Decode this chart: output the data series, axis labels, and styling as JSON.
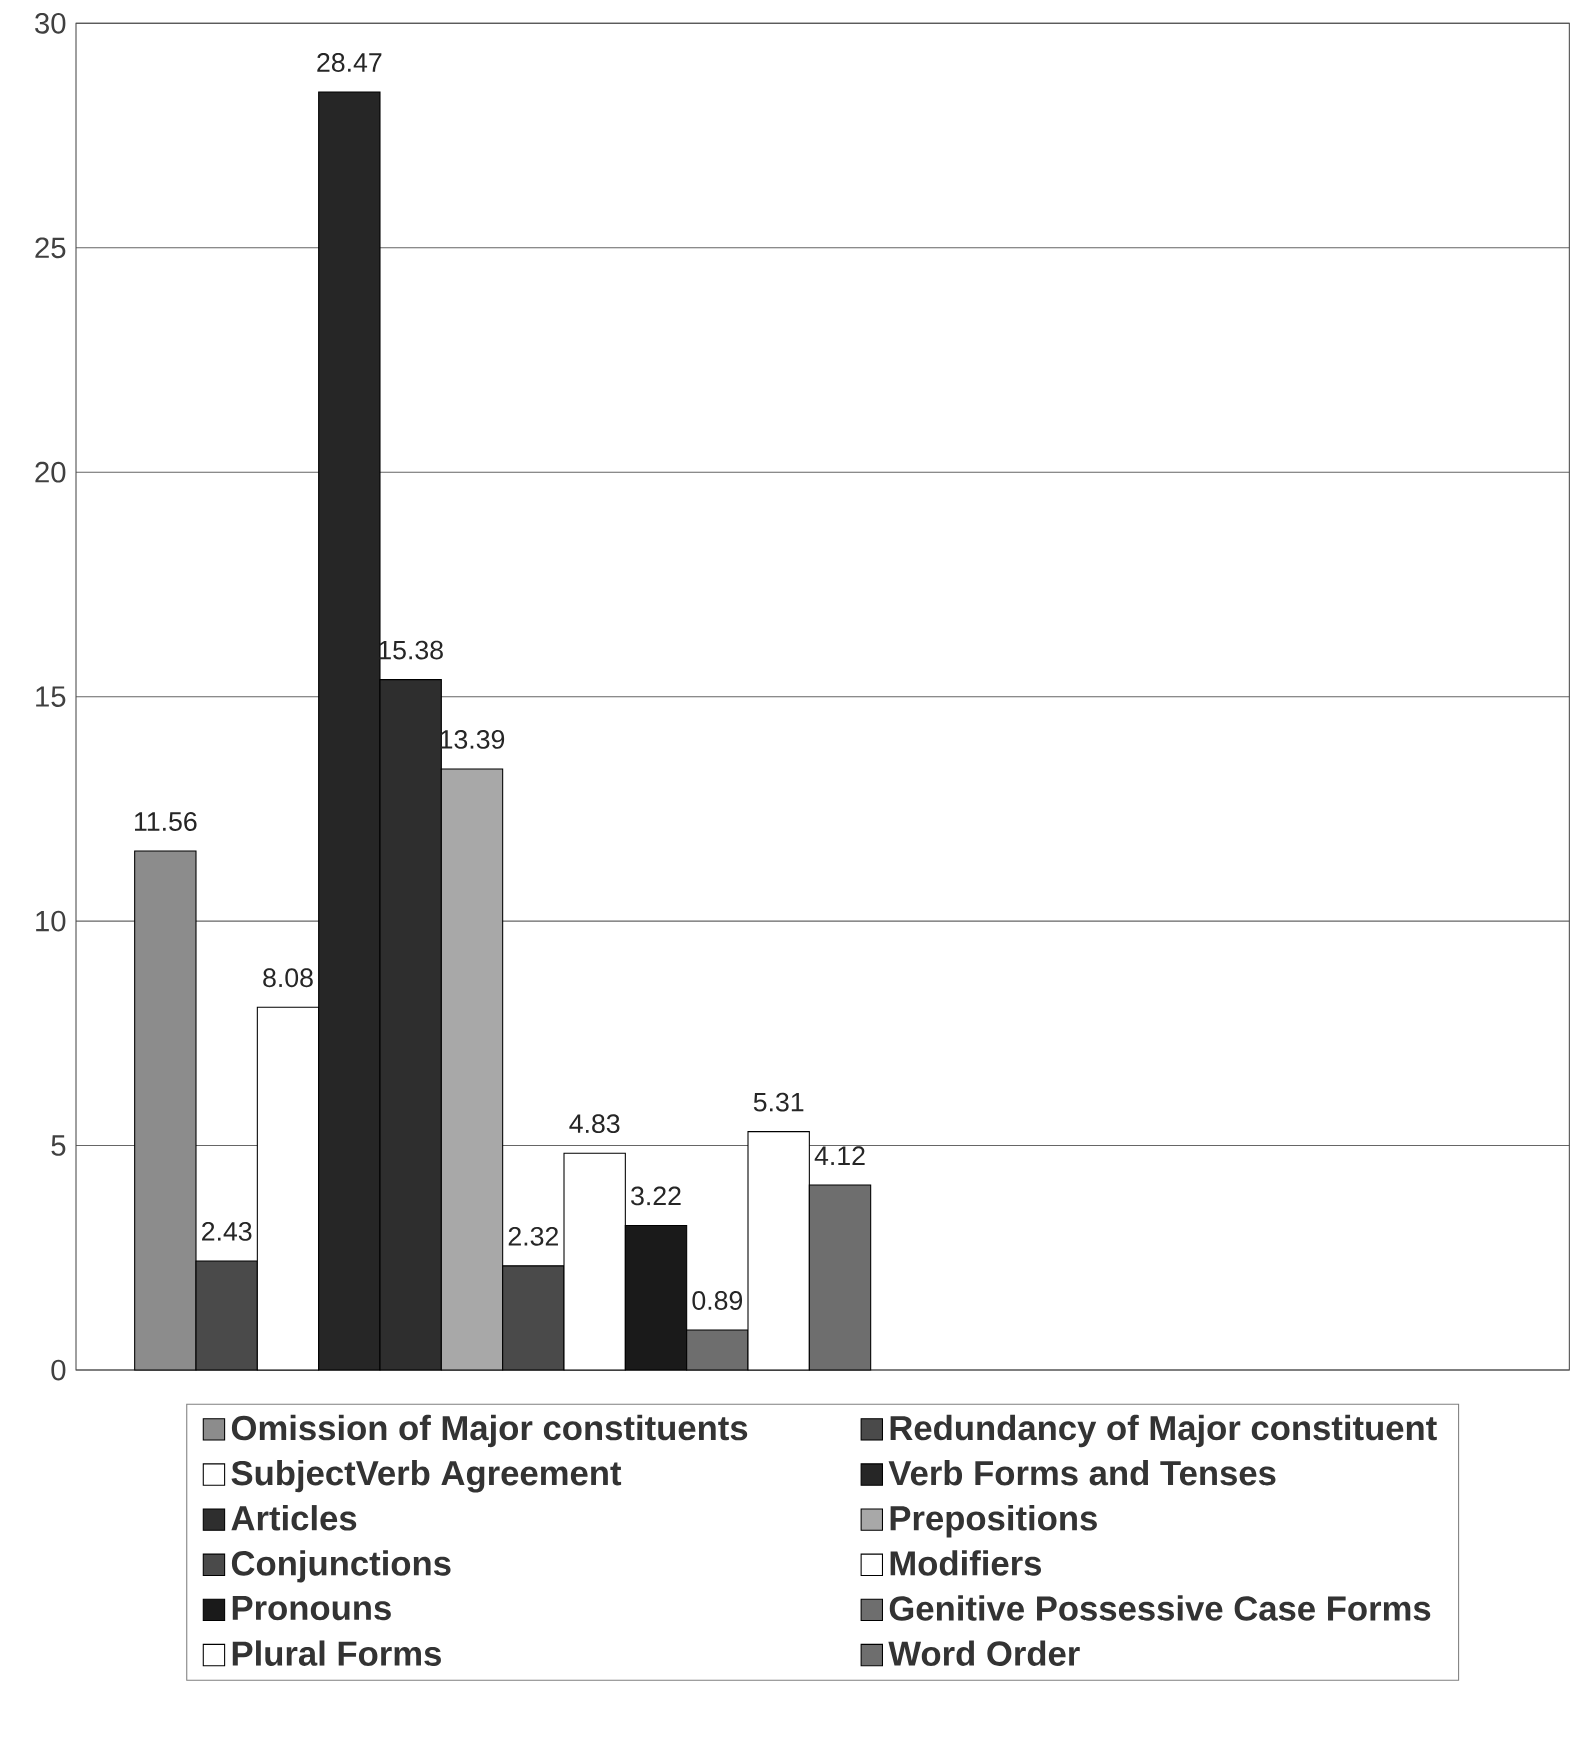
{
  "chart_data": {
    "type": "bar",
    "categories": [
      null
    ],
    "ylim": [
      0,
      30
    ],
    "yticks": [
      0,
      5,
      10,
      15,
      20,
      25,
      30
    ],
    "grid": "y",
    "data_labels": true,
    "legend": "bottom",
    "series": [
      {
        "name": "Omission of Major constituents",
        "color": "#8c8c8c",
        "values": [
          11.56
        ]
      },
      {
        "name": "Redundancy of Major constituent",
        "color": "#4a4a4a",
        "values": [
          2.43
        ]
      },
      {
        "name": "SubjectVerb Agreement",
        "color": "#ffffff",
        "values": [
          8.08
        ]
      },
      {
        "name": "Verb Forms and Tenses",
        "color": "#262626",
        "values": [
          28.47
        ]
      },
      {
        "name": "Articles",
        "color": "#2e2e2e",
        "values": [
          15.38
        ]
      },
      {
        "name": "Prepositions",
        "color": "#a8a8a8",
        "values": [
          13.39
        ]
      },
      {
        "name": "Conjunctions",
        "color": "#4a4a4a",
        "values": [
          2.32
        ]
      },
      {
        "name": "Modifiers",
        "color": "#ffffff",
        "values": [
          4.83
        ]
      },
      {
        "name": "Pronouns",
        "color": "#1a1a1a",
        "values": [
          3.22
        ]
      },
      {
        "name": "Genitive Possessive Case Forms",
        "color": "#6e6e6e",
        "values": [
          0.89
        ]
      },
      {
        "name": "Plural Forms",
        "color": "#ffffff",
        "values": [
          5.31
        ]
      },
      {
        "name": "Word Order",
        "color": "#6e6e6e",
        "values": [
          4.12
        ]
      }
    ]
  }
}
